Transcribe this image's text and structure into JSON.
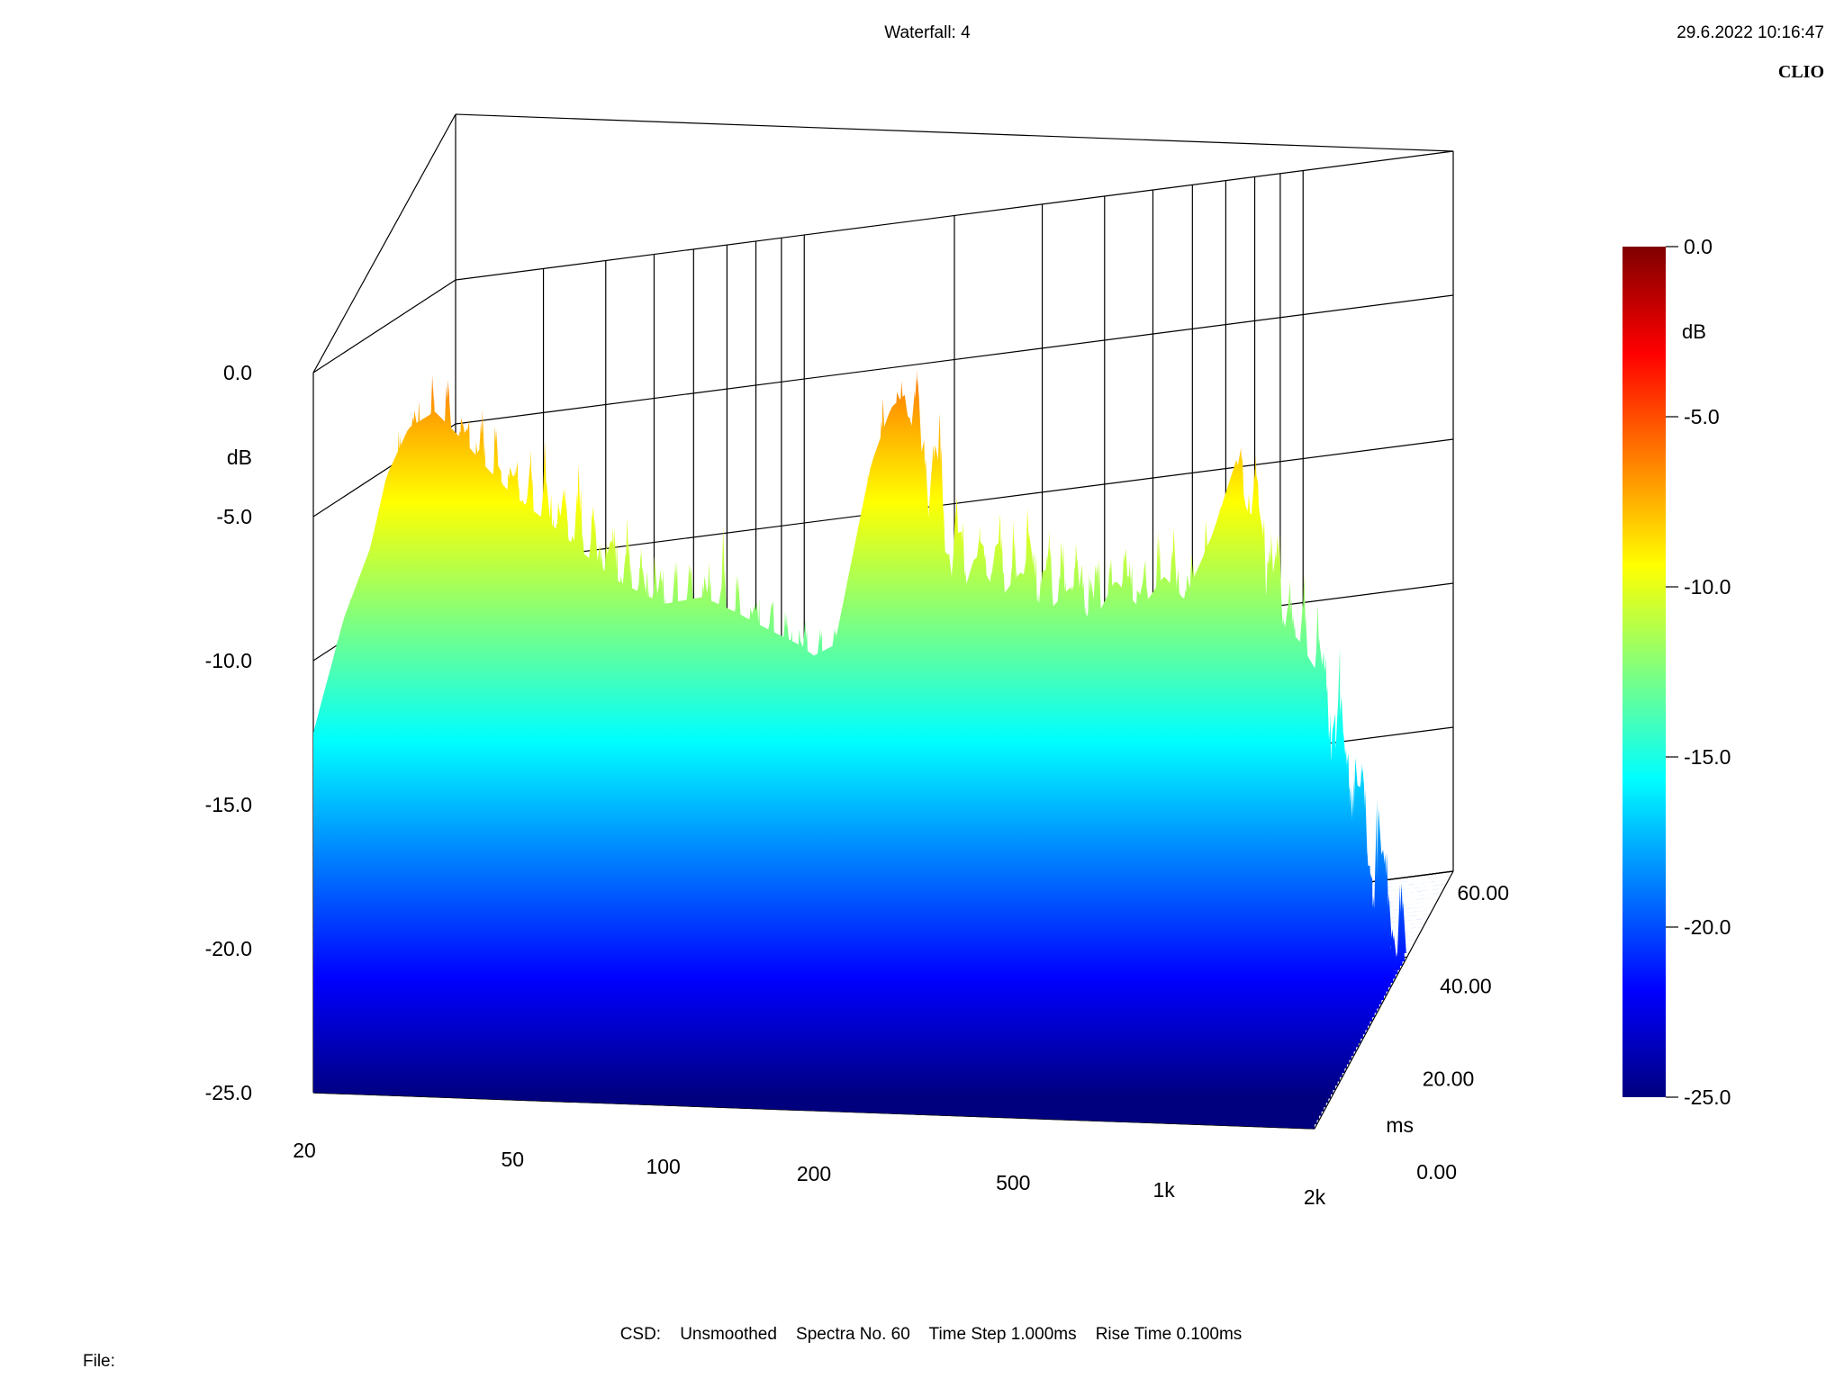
{
  "header": {
    "title": "Waterfall: 4",
    "timestamp": "29.6.2022 10:16:47",
    "brand": "CLIO"
  },
  "footer": {
    "settings": "CSD:    Unsmoothed    Spectra No. 60    Time Step 1.000ms    Rise Time 0.100ms",
    "file_label": "File:"
  },
  "chart_data": {
    "type": "waterfall",
    "title": "Waterfall: 4",
    "x_axis": {
      "label": "",
      "scale": "log",
      "range": [
        20,
        2000
      ],
      "ticks": [
        {
          "value": 20,
          "label": "20"
        },
        {
          "value": 50,
          "label": "50"
        },
        {
          "value": 100,
          "label": "100"
        },
        {
          "value": 200,
          "label": "200"
        },
        {
          "value": 500,
          "label": "500"
        },
        {
          "value": 1000,
          "label": "1k"
        },
        {
          "value": 2000,
          "label": "2k"
        }
      ]
    },
    "y_axis": {
      "label": "dB",
      "range": [
        -25,
        0
      ],
      "ticks": [
        {
          "value": 0,
          "label": "0.0"
        },
        {
          "value": -5,
          "label": "-5.0"
        },
        {
          "value": -10,
          "label": "-10.0"
        },
        {
          "value": -15,
          "label": "-15.0"
        },
        {
          "value": -20,
          "label": "-20.0"
        },
        {
          "value": -25,
          "label": "-25.0"
        }
      ]
    },
    "z_axis": {
      "label": "ms",
      "range": [
        0,
        60
      ],
      "ticks": [
        {
          "value": 0,
          "label": "0.00"
        },
        {
          "value": 20,
          "label": "20.00"
        },
        {
          "value": 40,
          "label": "40.00"
        },
        {
          "value": 60,
          "label": "60.00"
        }
      ]
    },
    "colorbar": {
      "label": "dB",
      "range": [
        -25,
        0
      ],
      "ticks": [
        {
          "value": 0,
          "label": "0.0"
        },
        {
          "value": -5,
          "label": "-5.0"
        },
        {
          "value": -10,
          "label": "-10.0"
        },
        {
          "value": -15,
          "label": "-15.0"
        },
        {
          "value": -20,
          "label": "-20.0"
        },
        {
          "value": -25,
          "label": "-25.0"
        }
      ],
      "colors": [
        "#00007f",
        "#0000ff",
        "#007fff",
        "#00ffff",
        "#7fff7f",
        "#ffff00",
        "#ff7f00",
        "#ff0000",
        "#7f0000"
      ]
    },
    "spectra_count": 60,
    "time_step_ms": 1.0,
    "first_slice_spectrum": [
      {
        "f": 20,
        "db": -12.5
      },
      {
        "f": 23,
        "db": -8.5
      },
      {
        "f": 26,
        "db": -6.0
      },
      {
        "f": 28,
        "db": -3.5
      },
      {
        "f": 31,
        "db": -1.8
      },
      {
        "f": 35,
        "db": -1.2
      },
      {
        "f": 40,
        "db": -2.2
      },
      {
        "f": 45,
        "db": -3.2
      },
      {
        "f": 50,
        "db": -4.0
      },
      {
        "f": 60,
        "db": -5.0
      },
      {
        "f": 70,
        "db": -6.0
      },
      {
        "f": 80,
        "db": -6.8
      },
      {
        "f": 100,
        "db": -7.6
      },
      {
        "f": 120,
        "db": -7.3
      },
      {
        "f": 140,
        "db": -7.8
      },
      {
        "f": 160,
        "db": -8.3
      },
      {
        "f": 185,
        "db": -8.8
      },
      {
        "f": 200,
        "db": -9.2
      },
      {
        "f": 220,
        "db": -8.8
      },
      {
        "f": 240,
        "db": -5.5
      },
      {
        "f": 260,
        "db": -2.5
      },
      {
        "f": 285,
        "db": -0.5
      },
      {
        "f": 305,
        "db": 0.0
      },
      {
        "f": 320,
        "db": -4.0
      },
      {
        "f": 340,
        "db": -8.5
      },
      {
        "f": 380,
        "db": -8.0
      },
      {
        "f": 420,
        "db": -5.5
      },
      {
        "f": 470,
        "db": -7.0
      },
      {
        "f": 520,
        "db": -6.0
      },
      {
        "f": 580,
        "db": -7.5
      },
      {
        "f": 650,
        "db": -6.5
      },
      {
        "f": 720,
        "db": -7.8
      },
      {
        "f": 800,
        "db": -6.2
      },
      {
        "f": 900,
        "db": -7.2
      },
      {
        "f": 1000,
        "db": -6.0
      },
      {
        "f": 1100,
        "db": -6.8
      },
      {
        "f": 1250,
        "db": -4.5
      },
      {
        "f": 1400,
        "db": -1.8
      },
      {
        "f": 1550,
        "db": -6.0
      },
      {
        "f": 1700,
        "db": -7.5
      },
      {
        "f": 1850,
        "db": -8.0
      },
      {
        "f": 2000,
        "db": -9.0
      }
    ],
    "decay_db_per_ms": 0.28
  }
}
